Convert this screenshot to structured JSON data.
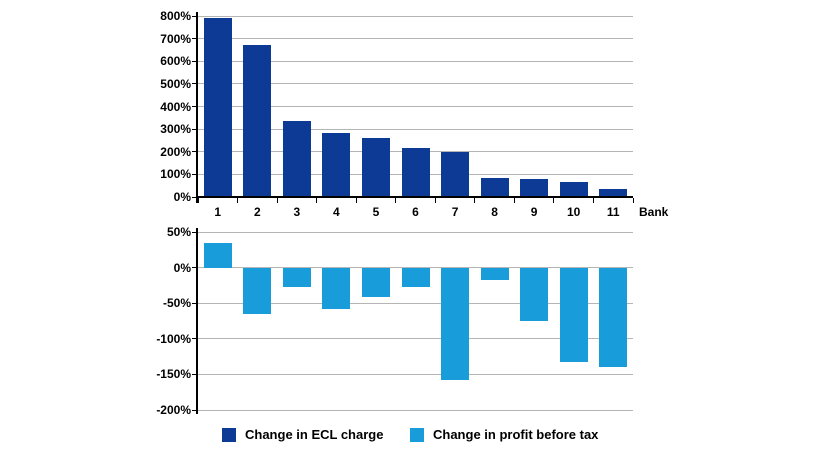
{
  "chart_data": [
    {
      "name": "ecl-charge-chart",
      "type": "bar",
      "title": "",
      "categories": [
        "1",
        "2",
        "3",
        "4",
        "5",
        "6",
        "7",
        "8",
        "9",
        "10",
        "11"
      ],
      "xlabel": "Bank",
      "ylabel": "",
      "ylim": [
        0,
        800
      ],
      "ystep": 100,
      "ytick_labels": [
        "800%",
        "700%",
        "600%",
        "500%",
        "400%",
        "300%",
        "200%",
        "100%",
        "0%"
      ],
      "grid": true,
      "show_x_tick_labels": true,
      "series": [
        {
          "name": "Change in ECL charge",
          "color": "#0c3a94",
          "values": [
            790,
            670,
            335,
            285,
            260,
            215,
            198,
            85,
            80,
            65,
            36
          ]
        }
      ]
    },
    {
      "name": "profit-before-tax-chart",
      "type": "bar",
      "title": "",
      "categories": [
        "1",
        "2",
        "3",
        "4",
        "5",
        "6",
        "7",
        "8",
        "9",
        "10",
        "11"
      ],
      "xlabel": "",
      "ylabel": "",
      "ylim": [
        -200,
        50
      ],
      "ystep": 50,
      "ytick_labels": [
        "50%",
        "0%",
        "-50%",
        "-100%",
        "-150%",
        "-200%"
      ],
      "grid": true,
      "show_x_tick_labels": false,
      "series": [
        {
          "name": "Change in profit before tax",
          "color": "#189cda",
          "values": [
            35,
            -65,
            -27,
            -58,
            -41,
            -27,
            -158,
            -17,
            -75,
            -132,
            -140
          ]
        }
      ]
    }
  ],
  "legend": {
    "items": [
      {
        "label": "Change in ECL charge",
        "color": "#0c3a94"
      },
      {
        "label": "Change in profit before tax",
        "color": "#189cda"
      }
    ]
  },
  "colors": {
    "background": "#ffffff",
    "gridline": "#b5b5b5",
    "axis": "#000000",
    "text": "#000000"
  }
}
